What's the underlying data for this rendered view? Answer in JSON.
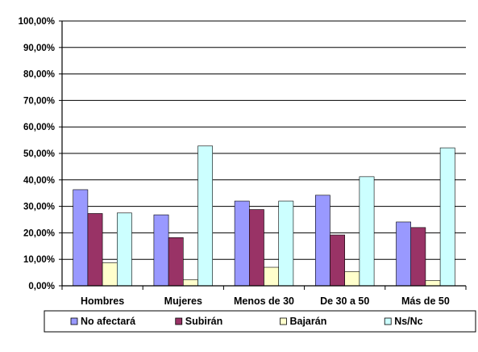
{
  "chart_data": {
    "type": "bar",
    "title": "",
    "xlabel": "",
    "ylabel": "",
    "categories": [
      "Hombres",
      "Mujeres",
      "Menos de 30",
      "De 30 a 50",
      "Más de 50"
    ],
    "series": [
      {
        "name": "No afectará",
        "color": "#9999ff",
        "values": [
          36.3,
          26.8,
          32.0,
          34.2,
          24.1
        ]
      },
      {
        "name": "Subirán",
        "color": "#993366",
        "values": [
          27.3,
          18.2,
          28.8,
          19.2,
          22.0
        ]
      },
      {
        "name": "Bajarán",
        "color": "#ffffcc",
        "values": [
          8.7,
          2.3,
          7.0,
          5.4,
          2.0
        ]
      },
      {
        "name": "Ns/Nc",
        "color": "#ccffff",
        "values": [
          27.5,
          52.8,
          32.0,
          41.2,
          52.1
        ]
      }
    ],
    "ylim": [
      0,
      100
    ],
    "yticks": [
      "0,00%",
      "10,00%",
      "20,00%",
      "30,00%",
      "40,00%",
      "50,00%",
      "60,00%",
      "70,00%",
      "80,00%",
      "90,00%",
      "100,00%"
    ],
    "grid": true,
    "legend_position": "bottom"
  }
}
